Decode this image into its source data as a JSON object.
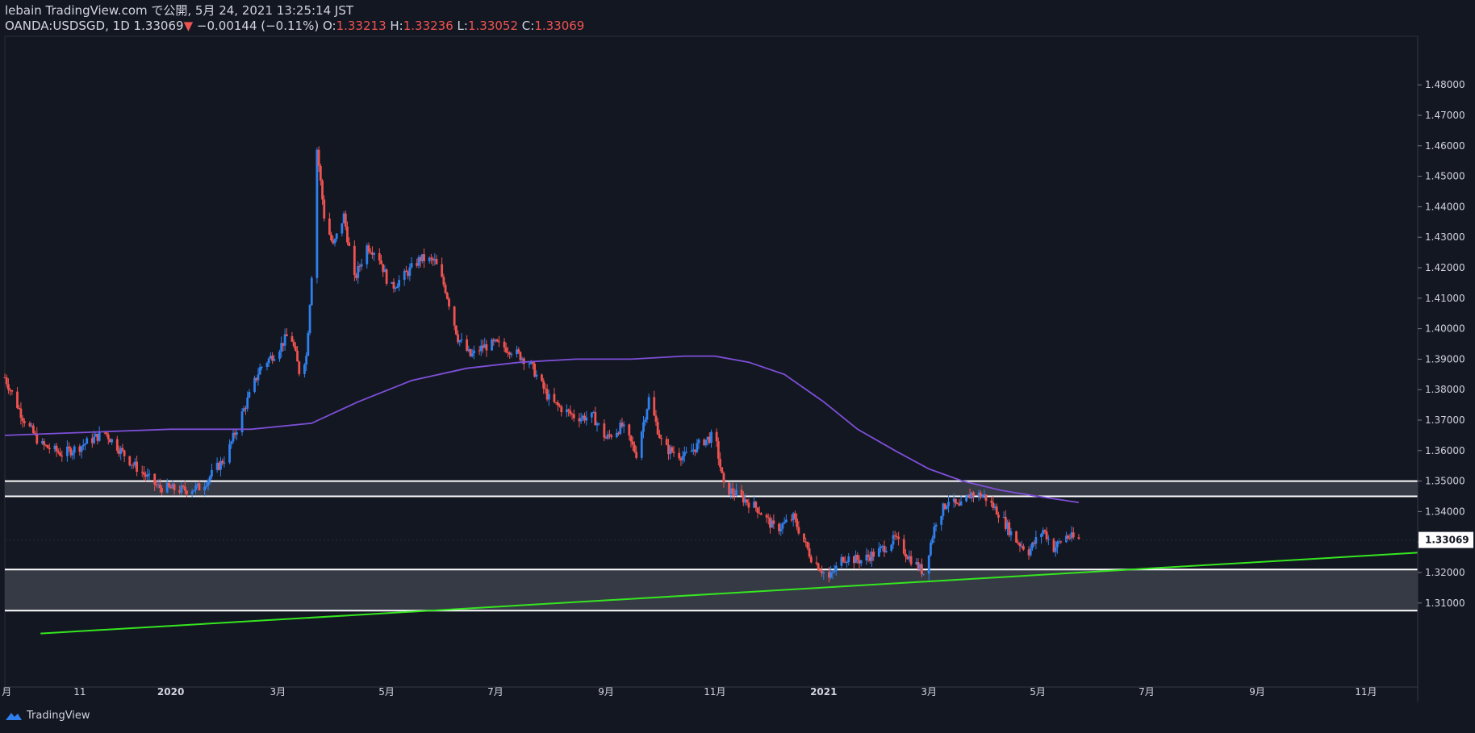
{
  "header": {
    "line1": "lebain TradingView.com で公開, 5月 24, 2021 13:25:14 JST",
    "symbol": "OANDA:USDSGD, 1D",
    "last": "1.33069",
    "change": "−0.00144 (−0.11%)",
    "o_label": "O:",
    "o_val": "1.33213",
    "h_label": "H:",
    "h_val": "1.33236",
    "l_label": "L:",
    "l_val": "1.33052",
    "c_label": "C:",
    "c_val": "1.33069"
  },
  "footer": {
    "brand": "TradingView"
  },
  "colors": {
    "background": "#131722",
    "up": "#2f80ed",
    "down": "#ef5350",
    "ma": "#7e4fd8",
    "trendline": "#35e61f",
    "zone": "#363a45",
    "zone_line": "#ffffff",
    "price_tag_bg": "#ffffff",
    "price_tag_text": "#131722"
  },
  "chart_data": {
    "type": "candlestick",
    "symbol": "OANDA:USDSGD",
    "timeframe": "1D",
    "x_tick_labels": [
      "月",
      "11",
      "2020",
      "3月",
      "5月",
      "7月",
      "9月",
      "11月",
      "2021",
      "3月",
      "5月",
      "7月",
      "9月",
      "11月"
    ],
    "y_tick_labels": [
      "1.48000",
      "1.47000",
      "1.46000",
      "1.45000",
      "1.44000",
      "1.43000",
      "1.42000",
      "1.41000",
      "1.40000",
      "1.39000",
      "1.38000",
      "1.37000",
      "1.36000",
      "1.35000",
      "1.34000",
      "1.33000",
      "1.32000",
      "1.31000"
    ],
    "ylim": [
      1.3,
      1.482
    ],
    "last_price": "1.33069",
    "price_series": [
      [
        "2019-09-30",
        1.384
      ],
      [
        "2019-10-10",
        1.371
      ],
      [
        "2019-10-20",
        1.362
      ],
      [
        "2019-11-01",
        1.359
      ],
      [
        "2019-11-10",
        1.361
      ],
      [
        "2019-11-25",
        1.366
      ],
      [
        "2019-12-10",
        1.356
      ],
      [
        "2019-12-25",
        1.348
      ],
      [
        "2020-01-08",
        1.347
      ],
      [
        "2020-01-18",
        1.348
      ],
      [
        "2020-02-01",
        1.358
      ],
      [
        "2020-02-10",
        1.372
      ],
      [
        "2020-02-20",
        1.387
      ],
      [
        "2020-03-01",
        1.393
      ],
      [
        "2020-03-08",
        1.399
      ],
      [
        "2020-03-13",
        1.386
      ],
      [
        "2020-03-17",
        1.391
      ],
      [
        "2020-03-20",
        1.418
      ],
      [
        "2020-03-23",
        1.459
      ],
      [
        "2020-03-27",
        1.437
      ],
      [
        "2020-04-01",
        1.427
      ],
      [
        "2020-04-07",
        1.437
      ],
      [
        "2020-04-13",
        1.416
      ],
      [
        "2020-04-20",
        1.427
      ],
      [
        "2020-04-26",
        1.425
      ],
      [
        "2020-05-03",
        1.413
      ],
      [
        "2020-05-12",
        1.418
      ],
      [
        "2020-05-20",
        1.423
      ],
      [
        "2020-05-28",
        1.422
      ],
      [
        "2020-06-03",
        1.413
      ],
      [
        "2020-06-10",
        1.397
      ],
      [
        "2020-06-17",
        1.391
      ],
      [
        "2020-06-24",
        1.394
      ],
      [
        "2020-07-01",
        1.395
      ],
      [
        "2020-07-10",
        1.393
      ],
      [
        "2020-07-20",
        1.389
      ],
      [
        "2020-08-01",
        1.376
      ],
      [
        "2020-08-15",
        1.371
      ],
      [
        "2020-08-25",
        1.371
      ],
      [
        "2020-09-01",
        1.364
      ],
      [
        "2020-09-10",
        1.368
      ],
      [
        "2020-09-18",
        1.359
      ],
      [
        "2020-09-25",
        1.377
      ],
      [
        "2020-10-03",
        1.361
      ],
      [
        "2020-10-15",
        1.358
      ],
      [
        "2020-10-25",
        1.363
      ],
      [
        "2020-11-01",
        1.365
      ],
      [
        "2020-11-06",
        1.348
      ],
      [
        "2020-11-15",
        1.345
      ],
      [
        "2020-11-25",
        1.341
      ],
      [
        "2020-12-05",
        1.334
      ],
      [
        "2020-12-15",
        1.338
      ],
      [
        "2020-12-25",
        1.325
      ],
      [
        "2021-01-04",
        1.318
      ],
      [
        "2021-01-12",
        1.325
      ],
      [
        "2021-01-22",
        1.324
      ],
      [
        "2021-02-01",
        1.327
      ],
      [
        "2021-02-10",
        1.331
      ],
      [
        "2021-02-18",
        1.325
      ],
      [
        "2021-02-26",
        1.32
      ],
      [
        "2021-03-05",
        1.337
      ],
      [
        "2021-03-12",
        1.344
      ],
      [
        "2021-03-18",
        1.341
      ],
      [
        "2021-03-25",
        1.346
      ],
      [
        "2021-04-01",
        1.345
      ],
      [
        "2021-04-10",
        1.339
      ],
      [
        "2021-04-18",
        1.331
      ],
      [
        "2021-04-26",
        1.327
      ],
      [
        "2021-05-04",
        1.334
      ],
      [
        "2021-05-10",
        1.328
      ],
      [
        "2021-05-17",
        1.332
      ],
      [
        "2021-05-24",
        1.3307
      ]
    ],
    "moving_average": [
      [
        "2019-09-30",
        1.365
      ],
      [
        "2019-11-15",
        1.366
      ],
      [
        "2020-01-01",
        1.367
      ],
      [
        "2020-02-15",
        1.367
      ],
      [
        "2020-03-20",
        1.369
      ],
      [
        "2020-04-15",
        1.376
      ],
      [
        "2020-05-15",
        1.383
      ],
      [
        "2020-06-15",
        1.387
      ],
      [
        "2020-07-15",
        1.389
      ],
      [
        "2020-08-15",
        1.39
      ],
      [
        "2020-09-15",
        1.39
      ],
      [
        "2020-10-15",
        1.391
      ],
      [
        "2020-11-01",
        1.391
      ],
      [
        "2020-11-20",
        1.389
      ],
      [
        "2020-12-10",
        1.385
      ],
      [
        "2021-01-01",
        1.376
      ],
      [
        "2021-01-20",
        1.367
      ],
      [
        "2021-02-10",
        1.36
      ],
      [
        "2021-03-01",
        1.354
      ],
      [
        "2021-03-20",
        1.35
      ],
      [
        "2021-04-10",
        1.347
      ],
      [
        "2021-05-01",
        1.345
      ],
      [
        "2021-05-24",
        1.343
      ]
    ],
    "support_resistance_zones": [
      {
        "top": 1.35,
        "bottom": 1.345
      },
      {
        "top": 1.321,
        "bottom": 1.3075
      }
    ],
    "trendline": {
      "start": [
        "2019-10-20",
        1.3
      ],
      "end": [
        "2021-11-30",
        1.3265
      ]
    }
  }
}
